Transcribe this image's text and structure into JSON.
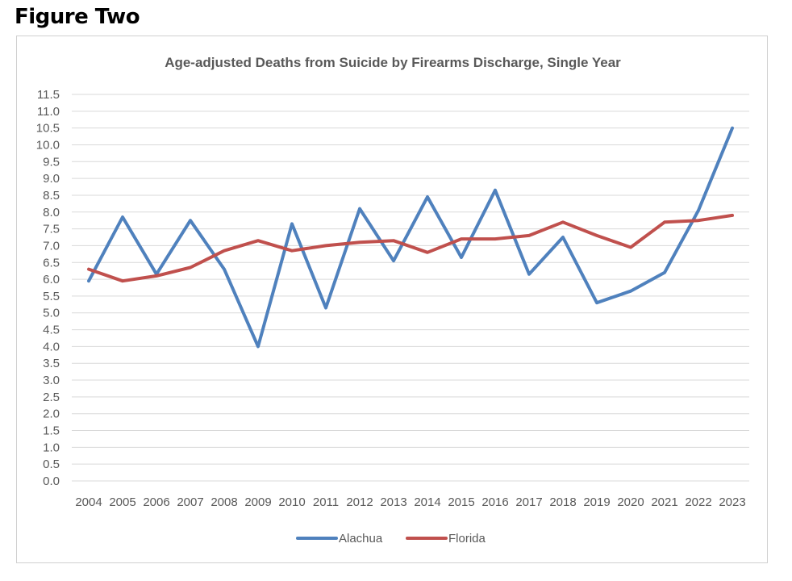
{
  "figure_label": "Figure Two",
  "chart_data": {
    "type": "line",
    "title": "Age-adjusted Deaths from Suicide by Firearms Discharge, Single Year",
    "xlabel": "",
    "ylabel": "",
    "x": [
      "2004",
      "2005",
      "2006",
      "2007",
      "2008",
      "2009",
      "2010",
      "2011",
      "2012",
      "2013",
      "2014",
      "2015",
      "2016",
      "2017",
      "2018",
      "2019",
      "2020",
      "2021",
      "2022",
      "2023"
    ],
    "ylim": [
      0,
      11.5
    ],
    "ytick_step": 0.5,
    "grid": "horizontal",
    "legend_position": "bottom",
    "series": [
      {
        "name": "Alachua",
        "color": "#4F81BD",
        "values": [
          5.95,
          7.85,
          6.15,
          7.75,
          6.3,
          4.0,
          7.65,
          5.15,
          8.1,
          6.55,
          8.45,
          6.65,
          8.65,
          6.15,
          7.25,
          5.3,
          5.65,
          6.2,
          8.05,
          10.5
        ]
      },
      {
        "name": "Florida",
        "color": "#C0504D",
        "values": [
          6.3,
          5.95,
          6.1,
          6.35,
          6.85,
          7.15,
          6.85,
          7.0,
          7.1,
          7.15,
          6.8,
          7.2,
          7.2,
          7.3,
          7.7,
          7.3,
          6.95,
          7.7,
          7.75,
          7.9
        ]
      }
    ]
  }
}
